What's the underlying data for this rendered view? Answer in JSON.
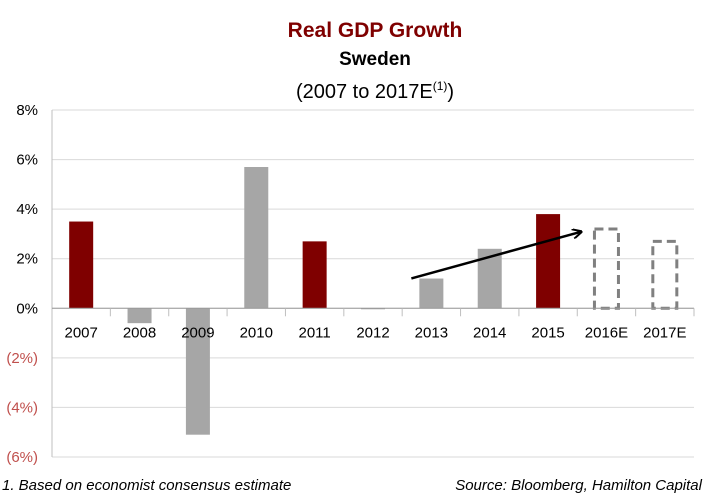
{
  "chart_data": {
    "type": "bar",
    "title": "Real GDP Growth",
    "subtitle": "Sweden",
    "range_label": "(2007 to 2017E",
    "range_superscript": "(1)",
    "range_close": ")",
    "categories": [
      "2007",
      "2008",
      "2009",
      "2010",
      "2011",
      "2012",
      "2013",
      "2014",
      "2015",
      "2016E",
      "2017E"
    ],
    "values": [
      3.5,
      -0.6,
      -5.1,
      5.7,
      2.7,
      0.0,
      1.2,
      2.4,
      3.8,
      3.2,
      2.7
    ],
    "bar_styles": [
      "highlight",
      "normal",
      "normal",
      "normal",
      "highlight",
      "normal",
      "normal",
      "normal",
      "highlight",
      "estimate",
      "estimate"
    ],
    "ylim": [
      -6,
      8
    ],
    "yticks": [
      {
        "value": 8,
        "label": "8%"
      },
      {
        "value": 6,
        "label": "6%"
      },
      {
        "value": 4,
        "label": "4%"
      },
      {
        "value": 2,
        "label": "2%"
      },
      {
        "value": 0,
        "label": "0%"
      },
      {
        "value": -2,
        "label": "(2%)"
      },
      {
        "value": -4,
        "label": "(4%)"
      },
      {
        "value": -6,
        "label": "(6%)"
      }
    ],
    "grid": true,
    "trend_arrow": {
      "from": [
        "2013",
        0.6
      ],
      "to": [
        "2016E",
        3.0
      ]
    },
    "colors": {
      "highlight": "#7f0000",
      "normal": "#a6a6a6",
      "estimate_outline": "#808080",
      "title": "#7f0000",
      "negative_tick": "#c0504d",
      "grid": "#d9d9d9",
      "axis": "#bfbfbf",
      "arrow": "#000000"
    }
  },
  "footnote": "1. Based on economist consensus estimate",
  "source": "Source: Bloomberg, Hamilton Capital"
}
